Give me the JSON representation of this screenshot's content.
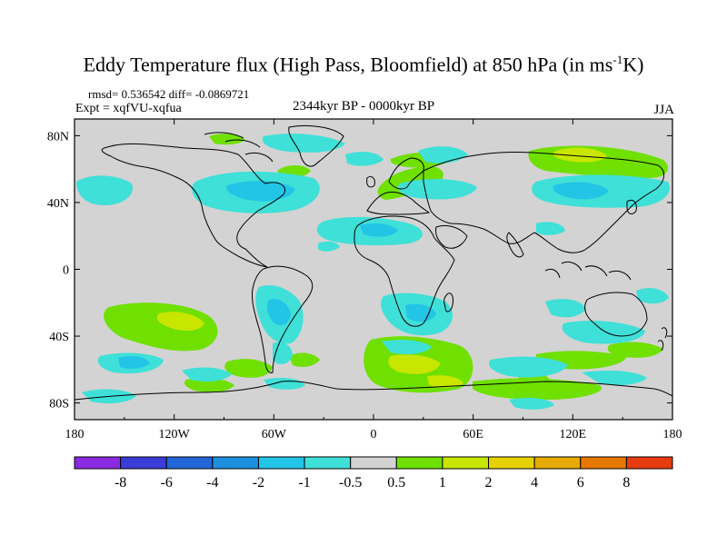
{
  "title": {
    "main": "Eddy Temperature flux (High Pass, Bloomfield) at 850 hPa (in ms",
    "sup": "-1",
    "end": "K)"
  },
  "stats": "rmsd= 0.536542 diff= -0.0869721",
  "expt": "Expt = xqfVU-xqfua",
  "period": "2344kyr BP - 0000kyr BP",
  "season": "JJA",
  "lat_labels": [
    "80N",
    "40N",
    "0",
    "40S",
    "80S"
  ],
  "lon_labels": [
    "180",
    "120W",
    "60W",
    "0",
    "60E",
    "120E",
    "180"
  ],
  "legend": {
    "labels": [
      "-8",
      "-6",
      "-4",
      "-2",
      "-1",
      "-0.5",
      "0.5",
      "1",
      "2",
      "4",
      "6",
      "8"
    ],
    "colors": [
      "#8a2be2",
      "#3b3bd8",
      "#2366d8",
      "#1e90e0",
      "#22c5e6",
      "#3fe0d8",
      "#d3d3d3",
      "#6fe000",
      "#c8e600",
      "#e6d200",
      "#e6aa00",
      "#e67800",
      "#e63c10"
    ]
  },
  "map_colors": {
    "neutral": "#d3d3d3",
    "neg1": "#3fe0d8",
    "neg2": "#22c5e6",
    "neg3": "#1e90e0",
    "pos1": "#6fe000",
    "pos2": "#c8e600"
  }
}
